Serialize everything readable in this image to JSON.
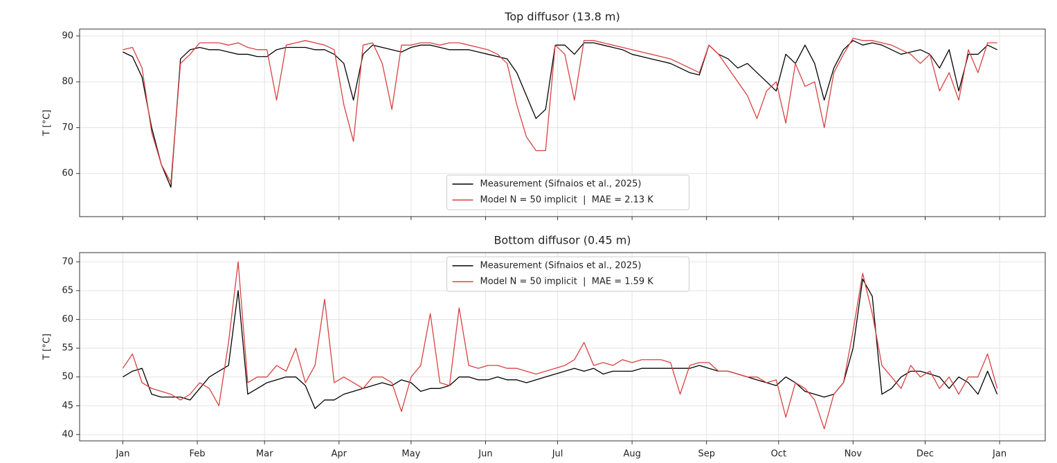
{
  "chart_data": [
    {
      "type": "line",
      "title": "Top diffusor (13.8 m)",
      "ylabel": "T [°C]",
      "x": [
        0,
        4,
        8,
        12,
        16,
        20,
        24,
        28,
        32,
        36,
        40,
        44,
        48,
        52,
        56,
        60,
        64,
        68,
        72,
        76,
        80,
        84,
        88,
        92,
        96,
        100,
        104,
        108,
        112,
        116,
        120,
        124,
        128,
        132,
        136,
        140,
        144,
        148,
        152,
        156,
        160,
        164,
        168,
        172,
        176,
        180,
        184,
        188,
        192,
        196,
        200,
        204,
        208,
        212,
        216,
        220,
        224,
        228,
        232,
        236,
        240,
        244,
        248,
        252,
        256,
        260,
        264,
        268,
        272,
        276,
        280,
        284,
        288,
        292,
        296,
        300,
        304,
        308,
        312,
        316,
        320,
        324,
        328,
        332,
        336,
        340,
        344,
        348,
        352,
        356,
        360,
        364
      ],
      "xlim": [
        -18,
        384
      ],
      "xticks": [
        0,
        31,
        59,
        90,
        120,
        151,
        181,
        212,
        243,
        273,
        304,
        334,
        365
      ],
      "ylim": [
        50.6,
        91.5
      ],
      "yticks": [
        60,
        70,
        80,
        90
      ],
      "grid": true,
      "legend": "lower center",
      "series": [
        {
          "name": "Measurement (Sifnaios et al., 2025)",
          "color": "#000000",
          "values": [
            86.5,
            85.5,
            81,
            70,
            62,
            57,
            85,
            87,
            87.5,
            87,
            87,
            86.5,
            86,
            86,
            85.5,
            85.5,
            87,
            87.5,
            87.5,
            87.5,
            87,
            87,
            86,
            84,
            76,
            86,
            88,
            87.5,
            87,
            86.5,
            87.5,
            88,
            88,
            87.5,
            87,
            87,
            87,
            86.5,
            86,
            85.5,
            85,
            82,
            77,
            72,
            74,
            88,
            88,
            86,
            88.5,
            88.5,
            88,
            87.5,
            87,
            86,
            85.5,
            85,
            84.5,
            84,
            83,
            82,
            81.5,
            88,
            86,
            85,
            83,
            84,
            82,
            80,
            78,
            86,
            84,
            88,
            84,
            76,
            83,
            87,
            89,
            88,
            88.5,
            88,
            87,
            86,
            86.5,
            87,
            86,
            83,
            87,
            78,
            86,
            86,
            88,
            87
          ]
        },
        {
          "name": "Model N = 50 implicit  |  MAE = 2.13 K",
          "color": "#d94040",
          "values": [
            87,
            87.5,
            83,
            69,
            62,
            58,
            84,
            86,
            88.5,
            88.5,
            88.5,
            88,
            88.5,
            87.5,
            87,
            87,
            76,
            88,
            88.5,
            89,
            88.5,
            88,
            87,
            75,
            67,
            88,
            88.5,
            84,
            74,
            88,
            88,
            88.5,
            88.5,
            88,
            88.5,
            88.5,
            88,
            87.5,
            87,
            86,
            84,
            75,
            68,
            65,
            65,
            88,
            86,
            76,
            89,
            89,
            88.5,
            88,
            87.5,
            87,
            86.5,
            86,
            85.5,
            85,
            84,
            83,
            82,
            88,
            86,
            83,
            80,
            77,
            72,
            78,
            80,
            71,
            84,
            79,
            80,
            70,
            82,
            86,
            89.5,
            89,
            89,
            88.5,
            88,
            87,
            86,
            84,
            86,
            78,
            82,
            76,
            87,
            82,
            88.5,
            88.5
          ]
        }
      ]
    },
    {
      "type": "line",
      "title": "Bottom diffusor (0.45 m)",
      "ylabel": "T [°C]",
      "x": [
        0,
        4,
        8,
        12,
        16,
        20,
        24,
        28,
        32,
        36,
        40,
        44,
        48,
        52,
        56,
        60,
        64,
        68,
        72,
        76,
        80,
        84,
        88,
        92,
        96,
        100,
        104,
        108,
        112,
        116,
        120,
        124,
        128,
        132,
        136,
        140,
        144,
        148,
        152,
        156,
        160,
        164,
        168,
        172,
        176,
        180,
        184,
        188,
        192,
        196,
        200,
        204,
        208,
        212,
        216,
        220,
        224,
        228,
        232,
        236,
        240,
        244,
        248,
        252,
        256,
        260,
        264,
        268,
        272,
        276,
        280,
        284,
        288,
        292,
        296,
        300,
        304,
        308,
        312,
        316,
        320,
        324,
        328,
        332,
        336,
        340,
        344,
        348,
        352,
        356,
        360,
        364
      ],
      "xlim": [
        -18,
        384
      ],
      "xticks": [
        {
          "value": 0,
          "label": "Jan"
        },
        {
          "value": 31,
          "label": "Feb"
        },
        {
          "value": 59,
          "label": "Mar"
        },
        {
          "value": 90,
          "label": "Apr"
        },
        {
          "value": 120,
          "label": "May"
        },
        {
          "value": 151,
          "label": "Jun"
        },
        {
          "value": 181,
          "label": "Jul"
        },
        {
          "value": 212,
          "label": "Aug"
        },
        {
          "value": 243,
          "label": "Sep"
        },
        {
          "value": 273,
          "label": "Oct"
        },
        {
          "value": 304,
          "label": "Nov"
        },
        {
          "value": 334,
          "label": "Dec"
        },
        {
          "value": 365,
          "label": "Jan"
        }
      ],
      "ylim": [
        38.9,
        71.6
      ],
      "yticks": [
        40,
        45,
        50,
        55,
        60,
        65,
        70
      ],
      "grid": true,
      "legend": "upper center",
      "series": [
        {
          "name": "Measurement (Sifnaios et al., 2025)",
          "color": "#000000",
          "values": [
            50,
            51,
            51.5,
            47,
            46.5,
            46.5,
            46.5,
            46,
            48,
            50,
            51,
            52,
            65,
            47,
            48,
            49,
            49.5,
            50,
            50,
            48.5,
            44.5,
            46,
            46,
            47,
            47.5,
            48,
            48.5,
            49,
            48.5,
            49.5,
            49,
            47.5,
            48,
            48,
            48.5,
            50,
            50,
            49.5,
            49.5,
            50,
            49.5,
            49.5,
            49,
            49.5,
            50,
            50.5,
            51,
            51.5,
            51,
            51.5,
            50.5,
            51,
            51,
            51,
            51.5,
            51.5,
            51.5,
            51.5,
            51.5,
            51.5,
            52,
            51.5,
            51,
            51,
            50.5,
            50,
            49.5,
            49,
            48.5,
            50,
            49,
            47.5,
            47,
            46.5,
            47,
            49,
            55,
            67,
            64,
            47,
            48,
            50,
            51,
            51,
            50.5,
            50,
            48,
            50,
            49,
            47,
            51,
            47
          ]
        },
        {
          "name": "Model N = 50 implicit  |  MAE = 1.59 K",
          "color": "#d94040",
          "values": [
            51.5,
            54,
            49,
            48,
            47.5,
            47,
            46,
            47,
            49,
            48,
            45,
            56,
            70,
            49,
            50,
            50,
            52,
            51,
            55,
            49,
            52,
            63.5,
            49,
            50,
            49,
            48,
            50,
            50,
            49,
            44,
            50,
            52,
            61,
            49,
            48.5,
            62,
            52,
            51.5,
            52,
            52,
            51.5,
            51.5,
            51,
            50.5,
            51,
            51.5,
            52,
            53,
            56,
            52,
            52.5,
            52,
            53,
            52.5,
            53,
            53,
            53,
            52.5,
            47,
            52,
            52.5,
            52.5,
            51,
            51,
            50.5,
            50,
            50,
            49,
            49.5,
            43,
            49,
            48,
            46,
            41,
            47,
            49,
            58,
            68,
            61,
            52,
            50,
            48,
            52,
            50,
            51,
            48,
            50,
            47,
            50,
            50,
            54,
            48
          ]
        }
      ]
    }
  ]
}
